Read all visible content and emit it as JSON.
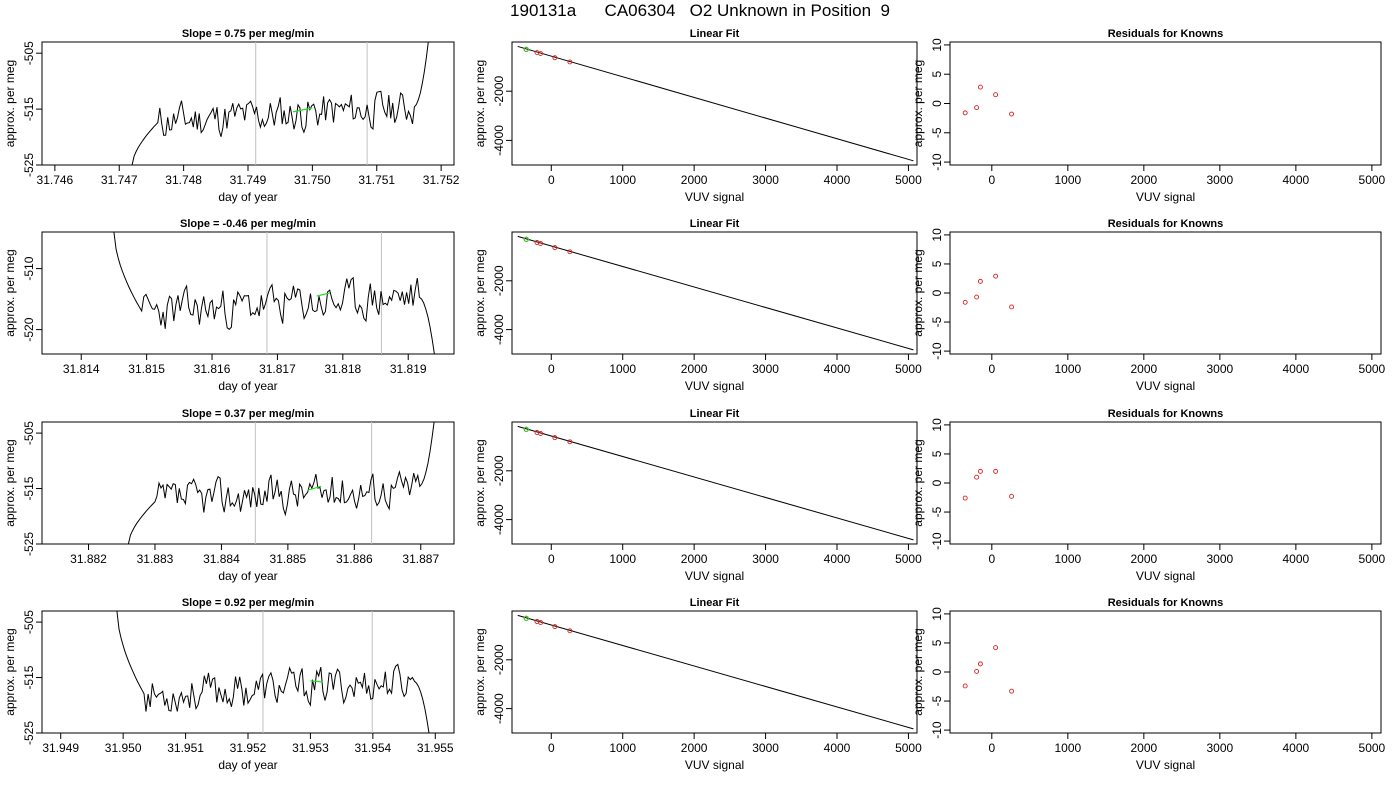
{
  "figure_title": "190131a      CA06304   O2 Unknown in Position  9",
  "colors": {
    "line": "#000000",
    "axis": "#000000",
    "highlight": "#22dd22",
    "known_points": "#dd2222",
    "marker_lines": "#c0c0c0"
  },
  "chart_data": [
    {
      "id": "r1-time",
      "type": "line",
      "title": "Slope =  0.75  per meg/min",
      "xlabel": "day of year",
      "ylabel": "approx. per meg",
      "xlim": [
        31.7458,
        31.7522
      ],
      "ylim": [
        -525,
        -503
      ],
      "xticks": [
        "31.746",
        "31.747",
        "31.748",
        "31.749",
        "31.750",
        "31.751",
        "31.752"
      ],
      "yticks": [
        "-525",
        "-515",
        "-505"
      ],
      "vlines": [
        31.74912,
        31.75085
      ],
      "start": [
        31.7472,
        -525
      ],
      "end": [
        31.7518,
        -503
      ],
      "base_level": -516,
      "seed": 11,
      "highlight": {
        "x": [
          31.7497,
          31.75
        ],
        "y": [
          -515.5,
          -514.8
        ]
      }
    },
    {
      "id": "r1-fit",
      "type": "scatter",
      "title": "Linear Fit",
      "xlabel": "VUV signal",
      "ylabel": "approx. per meg",
      "xlim": [
        -550,
        5120
      ],
      "ylim": [
        -5000,
        0
      ],
      "xticks": [
        "0",
        "1000",
        "2000",
        "3000",
        "4000",
        "5000"
      ],
      "yticks": [
        "-2000",
        "-4000"
      ],
      "line": {
        "x": [
          -470,
          5070
        ],
        "y": [
          -180,
          -4830
        ]
      },
      "points": {
        "x": [
          -350,
          -200,
          -150,
          50,
          260
        ],
        "y": [
          -300,
          -430,
          -470,
          -640,
          -810
        ]
      },
      "highlight_point": {
        "x": -350,
        "y": -300
      }
    },
    {
      "id": "r1-res",
      "type": "scatter",
      "title": "Residuals for Knowns",
      "xlabel": "VUV signal",
      "ylabel": "",
      "xlim": [
        -550,
        5120
      ],
      "ylim": [
        -10.5,
        10.5
      ],
      "xticks": [
        "0",
        "1000",
        "2000",
        "3000",
        "4000",
        "5000"
      ],
      "yticks": [
        "-10",
        "-5",
        "0",
        "5",
        "10"
      ],
      "points": {
        "x": [
          -350,
          -200,
          -150,
          50,
          260
        ],
        "y": [
          -1.6,
          -0.7,
          2.8,
          1.5,
          -1.8
        ]
      }
    },
    {
      "id": "r2-time",
      "type": "line",
      "title": "Slope =  -0.46  per meg/min",
      "xlabel": "day of year",
      "ylabel": "approx. per meg",
      "xlim": [
        31.8134,
        31.8197
      ],
      "ylim": [
        -524,
        -504
      ],
      "xticks": [
        "31.814",
        "31.815",
        "31.816",
        "31.817",
        "31.818",
        "31.819"
      ],
      "yticks": [
        "-520",
        "-510"
      ],
      "vlines": [
        31.81684,
        31.81859
      ],
      "start": [
        31.8145,
        -504
      ],
      "end": [
        31.8194,
        -524
      ],
      "base_level": -516,
      "seed": 23,
      "highlight": {
        "x": [
          31.8176,
          31.8178
        ],
        "y": [
          -514.5,
          -514.0
        ]
      }
    },
    {
      "id": "r2-fit",
      "type": "scatter",
      "title": "Linear Fit",
      "xlabel": "VUV signal",
      "ylabel": "approx. per meg",
      "xlim": [
        -550,
        5120
      ],
      "ylim": [
        -5000,
        0
      ],
      "xticks": [
        "0",
        "1000",
        "2000",
        "3000",
        "4000",
        "5000"
      ],
      "yticks": [
        "-2000",
        "-4000"
      ],
      "line": {
        "x": [
          -470,
          5070
        ],
        "y": [
          -180,
          -4830
        ]
      },
      "points": {
        "x": [
          -350,
          -200,
          -150,
          50,
          260
        ],
        "y": [
          -300,
          -430,
          -470,
          -640,
          -810
        ]
      },
      "highlight_point": {
        "x": -350,
        "y": -300
      }
    },
    {
      "id": "r2-res",
      "type": "scatter",
      "title": "Residuals for Knowns",
      "xlabel": "VUV signal",
      "ylabel": "",
      "xlim": [
        -550,
        5120
      ],
      "ylim": [
        -10.5,
        10.5
      ],
      "xticks": [
        "0",
        "1000",
        "2000",
        "3000",
        "4000",
        "5000"
      ],
      "yticks": [
        "-10",
        "-5",
        "0",
        "5",
        "10"
      ],
      "points": {
        "x": [
          -350,
          -200,
          -150,
          50,
          260
        ],
        "y": [
          -1.6,
          -0.7,
          2.0,
          2.9,
          -2.4
        ]
      }
    },
    {
      "id": "r3-time",
      "type": "line",
      "title": "Slope =  0.37  per meg/min",
      "xlabel": "day of year",
      "ylabel": "approx. per meg",
      "xlim": [
        31.8813,
        31.8875
      ],
      "ylim": [
        -525,
        -503
      ],
      "xticks": [
        "31.882",
        "31.883",
        "31.884",
        "31.885",
        "31.886",
        "31.887"
      ],
      "yticks": [
        "-525",
        "-515",
        "-505"
      ],
      "vlines": [
        31.88451,
        31.88626
      ],
      "start": [
        31.8826,
        -525
      ],
      "end": [
        31.8872,
        -503
      ],
      "base_level": -516,
      "seed": 37,
      "highlight": {
        "x": [
          31.8853,
          31.8855
        ],
        "y": [
          -515.3,
          -514.6
        ]
      }
    },
    {
      "id": "r3-fit",
      "type": "scatter",
      "title": "Linear Fit",
      "xlabel": "VUV signal",
      "ylabel": "approx. per meg",
      "xlim": [
        -550,
        5120
      ],
      "ylim": [
        -5000,
        0
      ],
      "xticks": [
        "0",
        "1000",
        "2000",
        "3000",
        "4000",
        "5000"
      ],
      "yticks": [
        "-2000",
        "-4000"
      ],
      "line": {
        "x": [
          -470,
          5070
        ],
        "y": [
          -180,
          -4830
        ]
      },
      "points": {
        "x": [
          -350,
          -200,
          -150,
          50,
          260
        ],
        "y": [
          -300,
          -430,
          -470,
          -640,
          -810
        ]
      },
      "highlight_point": {
        "x": -350,
        "y": -300
      }
    },
    {
      "id": "r3-res",
      "type": "scatter",
      "title": "Residuals for Knowns",
      "xlabel": "VUV signal",
      "ylabel": "",
      "xlim": [
        -550,
        5120
      ],
      "ylim": [
        -10.5,
        10.5
      ],
      "xticks": [
        "0",
        "1000",
        "2000",
        "3000",
        "4000",
        "5000"
      ],
      "yticks": [
        "-10",
        "-5",
        "0",
        "5",
        "10"
      ],
      "points": {
        "x": [
          -350,
          -200,
          -150,
          50,
          260
        ],
        "y": [
          -2.6,
          1.0,
          2.0,
          2.0,
          -2.3
        ]
      }
    },
    {
      "id": "r4-time",
      "type": "line",
      "title": "Slope =  0.92  per meg/min",
      "xlabel": "day of year",
      "ylabel": "approx. per meg",
      "xlim": [
        31.9487,
        31.9553
      ],
      "ylim": [
        -525,
        -503
      ],
      "xticks": [
        "31.949",
        "31.950",
        "31.951",
        "31.952",
        "31.953",
        "31.954",
        "31.955"
      ],
      "yticks": [
        "-525",
        "-515",
        "-505"
      ],
      "vlines": [
        31.95224,
        31.95399
      ],
      "start": [
        31.9499,
        -503
      ],
      "end": [
        31.9549,
        -525
      ],
      "base_level": -517,
      "seed": 53,
      "highlight": {
        "x": [
          31.953,
          31.9532
        ],
        "y": [
          -515.6,
          -515.8
        ]
      }
    },
    {
      "id": "r4-fit",
      "type": "scatter",
      "title": "Linear Fit",
      "xlabel": "VUV signal",
      "ylabel": "approx. per meg",
      "xlim": [
        -550,
        5120
      ],
      "ylim": [
        -5000,
        0
      ],
      "xticks": [
        "0",
        "1000",
        "2000",
        "3000",
        "4000",
        "5000"
      ],
      "yticks": [
        "-2000",
        "-4000"
      ],
      "line": {
        "x": [
          -470,
          5070
        ],
        "y": [
          -180,
          -4830
        ]
      },
      "points": {
        "x": [
          -350,
          -200,
          -150,
          50,
          260
        ],
        "y": [
          -300,
          -430,
          -470,
          -640,
          -810
        ]
      },
      "highlight_point": {
        "x": -350,
        "y": -300
      }
    },
    {
      "id": "r4-res",
      "type": "scatter",
      "title": "Residuals for Knowns",
      "xlabel": "VUV signal",
      "ylabel": "",
      "xlim": [
        -550,
        5120
      ],
      "ylim": [
        -10.5,
        10.5
      ],
      "xticks": [
        "0",
        "1000",
        "2000",
        "3000",
        "4000",
        "5000"
      ],
      "yticks": [
        "-10",
        "-5",
        "0",
        "5",
        "10"
      ],
      "points": {
        "x": [
          -350,
          -200,
          -150,
          50,
          260
        ],
        "y": [
          -2.4,
          0.1,
          1.4,
          4.2,
          -3.3
        ]
      }
    }
  ]
}
